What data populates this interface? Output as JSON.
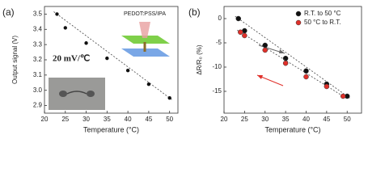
{
  "chart_data": [
    {
      "type": "scatter",
      "panel_label": "(a)",
      "x_label": "Temperature (°C)",
      "y_label": "Output signal (V)",
      "xlim": [
        20,
        52
      ],
      "xticks": [
        20,
        25,
        30,
        35,
        40,
        45,
        50
      ],
      "ylim": [
        2.85,
        3.55
      ],
      "yticks": [
        2.9,
        {
          "value": 3,
          "label": "3.0"
        },
        3.1,
        3.2,
        3.3,
        3.4,
        3.5
      ],
      "annotations": [
        "20 mV/℃",
        "PEDOT:PSS/IPA"
      ],
      "series": [
        {
          "color": "#111111",
          "x": [
            23,
            25,
            30,
            35,
            40,
            45,
            50
          ],
          "values": [
            3.5,
            3.41,
            3.31,
            3.21,
            3.13,
            3.04,
            2.95
          ]
        }
      ]
    },
    {
      "type": "scatter",
      "panel_label": "(b)",
      "x_label": "Temperature (°C)",
      "y_label": "ΔR/R₀ (%)",
      "xlim": [
        20,
        53.5
      ],
      "xticks": [
        20,
        25,
        30,
        35,
        40,
        45,
        50
      ],
      "ylim": [
        -19.5,
        2.5
      ],
      "yticks": [
        0,
        -5,
        -10,
        -15
      ],
      "legend": "upper right",
      "series": [
        {
          "name": "R.T. to 50 °C",
          "color": "#111111",
          "x": [
            23.5,
            25,
            30,
            35,
            40,
            45,
            50
          ],
          "values": [
            0,
            -2.5,
            -5.5,
            -8.2,
            -10.8,
            -13.5,
            -16
          ]
        },
        {
          "name": "50 °C to R.T.",
          "color": "#e0302a",
          "x": [
            24,
            25,
            30,
            35,
            40,
            45,
            49
          ],
          "values": [
            -2.8,
            -3.5,
            -6.5,
            -9.2,
            -12,
            -14,
            -16
          ]
        }
      ]
    }
  ]
}
